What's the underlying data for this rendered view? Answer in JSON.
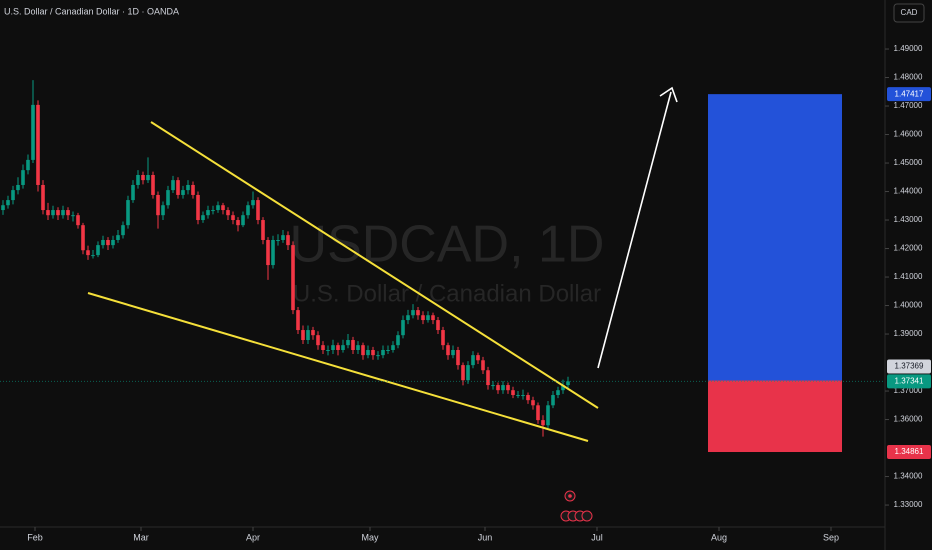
{
  "chart_data": {
    "type": "candlestick",
    "title": "U.S. Dollar / Canadian Dollar · 1D · OANDA",
    "watermark": "USDCAD, 1D",
    "watermark_subtitle": "U.S. Dollar / Canadian Dollar",
    "currency": "CAD",
    "up_color": "#089981",
    "down_color": "#f23645",
    "xlim": [
      -0.6,
      176.4
    ],
    "xticks": [
      {
        "value": 6.4,
        "label": "Feb"
      },
      {
        "value": 27.6,
        "label": "Mar"
      },
      {
        "value": 50,
        "label": "Apr"
      },
      {
        "value": 73.4,
        "label": "May"
      },
      {
        "value": 96.4,
        "label": "Jun"
      },
      {
        "value": 118.8,
        "label": "Jul"
      },
      {
        "value": 143.2,
        "label": "Aug"
      },
      {
        "value": 165.6,
        "label": "Sep"
      }
    ],
    "ylim": [
      1.3223,
      1.5072
    ],
    "yticks": [
      {
        "value": 1.49,
        "label": "1.49000"
      },
      {
        "value": 1.48,
        "label": "1.48000"
      },
      {
        "value": 1.47,
        "label": "1.47000"
      },
      {
        "value": 1.46,
        "label": "1.46000"
      },
      {
        "value": 1.45,
        "label": "1.45000"
      },
      {
        "value": 1.44,
        "label": "1.44000"
      },
      {
        "value": 1.43,
        "label": "1.43000"
      },
      {
        "value": 1.42,
        "label": "1.42000"
      },
      {
        "value": 1.41,
        "label": "1.41000"
      },
      {
        "value": 1.4,
        "label": "1.40000"
      },
      {
        "value": 1.39,
        "label": "1.39000"
      },
      {
        "value": 1.37,
        "label": "1.37000"
      },
      {
        "value": 1.36,
        "label": "1.36000"
      },
      {
        "value": 1.34,
        "label": "1.34000"
      },
      {
        "value": 1.33,
        "label": "1.33000"
      }
    ],
    "last_price": 1.37341,
    "position": {
      "entry": 1.37369,
      "target": 1.47417,
      "stop": 1.34861,
      "profit_color": "#2352d9",
      "loss_color": "#e8334a"
    },
    "ohlc": [
      [
        1.4335,
        1.437,
        1.4318,
        1.4352
      ],
      [
        1.4352,
        1.4385,
        1.434,
        1.437
      ],
      [
        1.437,
        1.442,
        1.4355,
        1.4405
      ],
      [
        1.4405,
        1.445,
        1.439,
        1.4423
      ],
      [
        1.4423,
        1.4495,
        1.441,
        1.4475
      ],
      [
        1.4475,
        1.453,
        1.446,
        1.4511
      ],
      [
        1.4511,
        1.4791,
        1.45,
        1.4704
      ],
      [
        1.4704,
        1.472,
        1.44,
        1.4423
      ],
      [
        1.4423,
        1.444,
        1.432,
        1.4335
      ],
      [
        1.4335,
        1.436,
        1.43,
        1.4317
      ],
      [
        1.4317,
        1.435,
        1.4305,
        1.4335
      ],
      [
        1.4335,
        1.4345,
        1.43,
        1.4317
      ],
      [
        1.4317,
        1.435,
        1.4305,
        1.4335
      ],
      [
        1.4335,
        1.4345,
        1.43,
        1.4317
      ],
      [
        1.4317,
        1.433,
        1.4295,
        1.4317
      ],
      [
        1.4317,
        1.4325,
        1.427,
        1.4282
      ],
      [
        1.4282,
        1.429,
        1.418,
        1.4194
      ],
      [
        1.4194,
        1.421,
        1.416,
        1.4177
      ],
      [
        1.4177,
        1.4195,
        1.4165,
        1.4177
      ],
      [
        1.4177,
        1.4225,
        1.417,
        1.4212
      ],
      [
        1.4212,
        1.4245,
        1.42,
        1.423
      ],
      [
        1.423,
        1.424,
        1.4195,
        1.4212
      ],
      [
        1.4212,
        1.4245,
        1.42,
        1.423
      ],
      [
        1.423,
        1.4265,
        1.422,
        1.4247
      ],
      [
        1.4247,
        1.4295,
        1.4235,
        1.4282
      ],
      [
        1.4282,
        1.4385,
        1.427,
        1.437
      ],
      [
        1.437,
        1.444,
        1.436,
        1.4423
      ],
      [
        1.4423,
        1.4475,
        1.441,
        1.4458
      ],
      [
        1.4458,
        1.447,
        1.4425,
        1.444
      ],
      [
        1.444,
        1.452,
        1.443,
        1.4458
      ],
      [
        1.4458,
        1.447,
        1.4375,
        1.4388
      ],
      [
        1.4388,
        1.44,
        1.427,
        1.4317
      ],
      [
        1.4317,
        1.4365,
        1.43,
        1.4352
      ],
      [
        1.4352,
        1.442,
        1.434,
        1.4405
      ],
      [
        1.4405,
        1.4455,
        1.4395,
        1.444
      ],
      [
        1.444,
        1.445,
        1.4375,
        1.4388
      ],
      [
        1.4388,
        1.442,
        1.4375,
        1.4405
      ],
      [
        1.4405,
        1.444,
        1.439,
        1.4423
      ],
      [
        1.4423,
        1.4435,
        1.4375,
        1.4388
      ],
      [
        1.4388,
        1.44,
        1.4285,
        1.43
      ],
      [
        1.43,
        1.433,
        1.429,
        1.4317
      ],
      [
        1.4317,
        1.435,
        1.4305,
        1.4335
      ],
      [
        1.4335,
        1.435,
        1.432,
        1.4335
      ],
      [
        1.4335,
        1.4365,
        1.4325,
        1.4352
      ],
      [
        1.4352,
        1.436,
        1.432,
        1.4335
      ],
      [
        1.4335,
        1.4345,
        1.43,
        1.4317
      ],
      [
        1.4317,
        1.433,
        1.4285,
        1.43
      ],
      [
        1.43,
        1.431,
        1.426,
        1.4282
      ],
      [
        1.4282,
        1.433,
        1.4275,
        1.4317
      ],
      [
        1.4317,
        1.4365,
        1.4305,
        1.4352
      ],
      [
        1.4352,
        1.44,
        1.434,
        1.437
      ],
      [
        1.437,
        1.438,
        1.4285,
        1.43
      ],
      [
        1.43,
        1.431,
        1.4215,
        1.423
      ],
      [
        1.423,
        1.424,
        1.409,
        1.4142
      ],
      [
        1.4142,
        1.4245,
        1.413,
        1.423
      ],
      [
        1.423,
        1.425,
        1.421,
        1.423
      ],
      [
        1.423,
        1.4265,
        1.422,
        1.4247
      ],
      [
        1.4247,
        1.426,
        1.4195,
        1.4212
      ],
      [
        1.4212,
        1.4225,
        1.397,
        1.3984
      ],
      [
        1.3984,
        1.3995,
        1.39,
        1.3914
      ],
      [
        1.3914,
        1.393,
        1.3865,
        1.3879
      ],
      [
        1.3879,
        1.393,
        1.3865,
        1.3914
      ],
      [
        1.3914,
        1.3925,
        1.388,
        1.3896
      ],
      [
        1.3896,
        1.391,
        1.3845,
        1.3861
      ],
      [
        1.3861,
        1.3875,
        1.383,
        1.3844
      ],
      [
        1.3844,
        1.386,
        1.3825,
        1.3844
      ],
      [
        1.3844,
        1.388,
        1.383,
        1.3861
      ],
      [
        1.3861,
        1.387,
        1.3825,
        1.3844
      ],
      [
        1.3844,
        1.388,
        1.3835,
        1.3861
      ],
      [
        1.3861,
        1.39,
        1.385,
        1.3879
      ],
      [
        1.3879,
        1.389,
        1.383,
        1.3844
      ],
      [
        1.3844,
        1.3875,
        1.383,
        1.3861
      ],
      [
        1.3861,
        1.387,
        1.381,
        1.3826
      ],
      [
        1.3826,
        1.386,
        1.3815,
        1.3844
      ],
      [
        1.3844,
        1.3855,
        1.381,
        1.3826
      ],
      [
        1.3826,
        1.384,
        1.381,
        1.3826
      ],
      [
        1.3826,
        1.386,
        1.3815,
        1.3844
      ],
      [
        1.3844,
        1.386,
        1.383,
        1.3844
      ],
      [
        1.3844,
        1.3875,
        1.3835,
        1.3861
      ],
      [
        1.3861,
        1.391,
        1.385,
        1.3896
      ],
      [
        1.3896,
        1.3965,
        1.3885,
        1.3949
      ],
      [
        1.3949,
        1.3985,
        1.3935,
        1.3966
      ],
      [
        1.3966,
        1.4005,
        1.3955,
        1.3984
      ],
      [
        1.3984,
        1.3995,
        1.395,
        1.3966
      ],
      [
        1.3966,
        1.398,
        1.3935,
        1.3949
      ],
      [
        1.3949,
        1.398,
        1.394,
        1.3966
      ],
      [
        1.3966,
        1.3975,
        1.3935,
        1.3949
      ],
      [
        1.3949,
        1.396,
        1.39,
        1.3914
      ],
      [
        1.3914,
        1.3925,
        1.3845,
        1.3861
      ],
      [
        1.3861,
        1.387,
        1.381,
        1.3826
      ],
      [
        1.3826,
        1.386,
        1.3815,
        1.3844
      ],
      [
        1.3844,
        1.3855,
        1.3775,
        1.3791
      ],
      [
        1.3791,
        1.38,
        1.372,
        1.3738
      ],
      [
        1.3738,
        1.3805,
        1.3725,
        1.3791
      ],
      [
        1.3791,
        1.384,
        1.378,
        1.3826
      ],
      [
        1.3826,
        1.3835,
        1.3795,
        1.3808
      ],
      [
        1.3808,
        1.382,
        1.376,
        1.3773
      ],
      [
        1.3773,
        1.3785,
        1.3705,
        1.3721
      ],
      [
        1.3721,
        1.3735,
        1.3705,
        1.3721
      ],
      [
        1.3721,
        1.373,
        1.369,
        1.3703
      ],
      [
        1.3703,
        1.3735,
        1.369,
        1.3721
      ],
      [
        1.3721,
        1.373,
        1.369,
        1.3703
      ],
      [
        1.3703,
        1.3715,
        1.3675,
        1.3686
      ],
      [
        1.3686,
        1.37,
        1.3675,
        1.3686
      ],
      [
        1.3686,
        1.3705,
        1.367,
        1.3686
      ],
      [
        1.3686,
        1.3695,
        1.3655,
        1.3668
      ],
      [
        1.3668,
        1.368,
        1.3635,
        1.365
      ],
      [
        1.365,
        1.366,
        1.3585,
        1.3598
      ],
      [
        1.3598,
        1.3615,
        1.354,
        1.358
      ],
      [
        1.358,
        1.3665,
        1.357,
        1.365
      ],
      [
        1.365,
        1.37,
        1.364,
        1.3686
      ],
      [
        1.3686,
        1.3715,
        1.3675,
        1.3703
      ],
      [
        1.3703,
        1.374,
        1.369,
        1.3721
      ],
      [
        1.3721,
        1.375,
        1.3705,
        1.3734
      ]
    ]
  }
}
